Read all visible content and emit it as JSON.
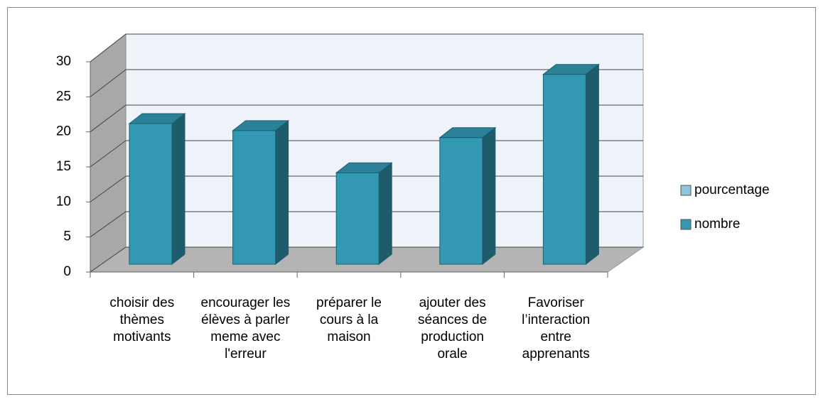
{
  "chart_data": {
    "type": "bar3d",
    "categories": [
      "choisir des thèmes motivants",
      "encourager les élèves à parler meme avec l'erreur",
      "préparer le cours à la maison",
      "ajouter des séances de production orale",
      "Favoriser l’interaction entre apprenants"
    ],
    "series": [
      {
        "name": "pourcentage",
        "color": "#8cc7dc",
        "values": [
          null,
          null,
          null,
          null,
          null
        ]
      },
      {
        "name": "nombre",
        "color": "#3399b3",
        "values": [
          20,
          19,
          13,
          18,
          27
        ]
      }
    ],
    "ylim": [
      0,
      30
    ],
    "yticks": [
      0,
      5,
      10,
      15,
      20,
      25,
      30
    ],
    "grid": true,
    "legend": "right"
  }
}
